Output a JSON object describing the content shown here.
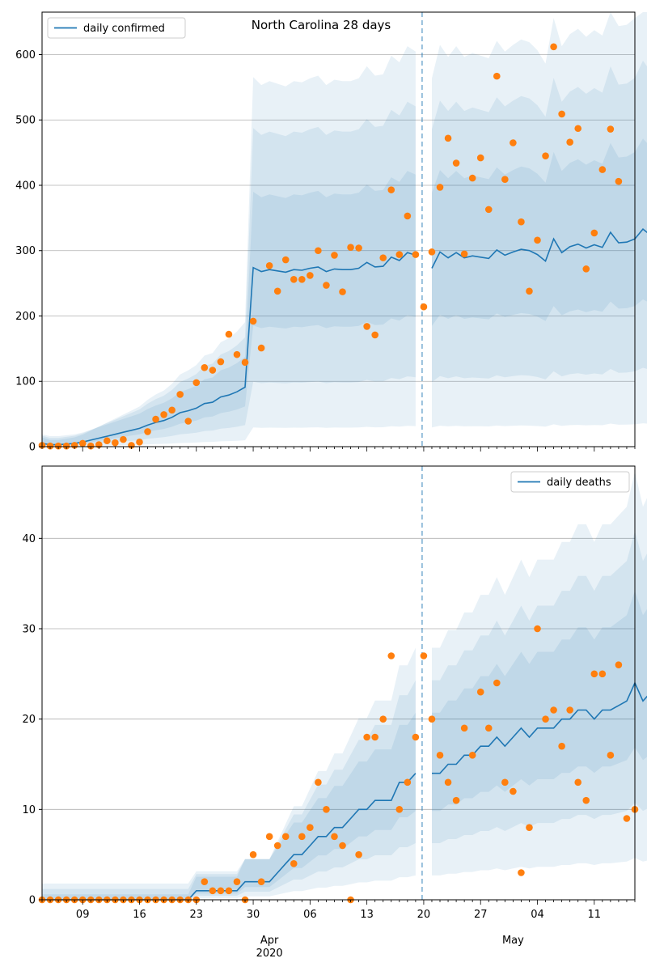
{
  "chart_data": [
    {
      "type": "line",
      "title": "North Carolina 28 days",
      "ylim": [
        0,
        665
      ],
      "yticks": [
        0,
        100,
        200,
        300,
        400,
        500,
        600
      ],
      "legend": "top-left",
      "grid": "horizontal",
      "day_range": [
        0,
        73
      ],
      "series": [
        {
          "name": "daily confirmed",
          "color": "#1f77b4",
          "values": [
            5,
            3,
            3,
            4,
            5,
            7,
            10,
            13,
            16,
            19,
            22,
            25,
            28,
            33,
            37,
            40,
            45,
            52,
            55,
            59,
            66,
            68,
            76,
            79,
            84,
            91,
            274,
            268,
            271,
            269,
            267,
            271,
            270,
            273,
            275,
            268,
            272,
            271,
            271,
            273,
            282,
            275,
            276,
            290,
            285,
            297,
            293,
            null,
            273,
            298,
            289,
            297,
            289,
            292,
            290,
            288,
            301,
            293,
            298,
            302,
            300,
            294,
            284,
            318,
            297,
            306,
            310,
            304,
            309,
            305,
            328,
            312,
            313,
            318,
            333,
            323
          ]
        }
      ],
      "observed": {
        "color": "#ff7f0e",
        "values": [
          2,
          1,
          1,
          1,
          2,
          5,
          1,
          3,
          9,
          6,
          11,
          2,
          7,
          23,
          42,
          49,
          56,
          80,
          39,
          98,
          121,
          117,
          130,
          172,
          141,
          129,
          192,
          151,
          277,
          238,
          286,
          256,
          256,
          262,
          300,
          247,
          293,
          237,
          305,
          304,
          184,
          171,
          289,
          393,
          294,
          353,
          294,
          214,
          298,
          397,
          472,
          434,
          295,
          411,
          442,
          363,
          567,
          409,
          465,
          344,
          238,
          316,
          445,
          612,
          509,
          466,
          487,
          272,
          327,
          424,
          486,
          406
        ]
      },
      "band_color": "#1f77b4"
    },
    {
      "type": "line",
      "ylim": [
        0,
        48
      ],
      "yticks": [
        0,
        10,
        20,
        30,
        40
      ],
      "legend": "top-right",
      "grid": "horizontal",
      "day_range": [
        0,
        73
      ],
      "series": [
        {
          "name": "daily deaths",
          "color": "#1f77b4",
          "values": [
            0,
            0,
            0,
            0,
            0,
            0,
            0,
            0,
            0,
            0,
            0,
            0,
            0,
            0,
            0,
            0,
            0,
            0,
            0,
            1,
            1,
            1,
            1,
            1,
            1,
            2,
            2,
            2,
            2,
            3,
            4,
            5,
            5,
            6,
            7,
            7,
            8,
            8,
            9,
            10,
            10,
            11,
            11,
            11,
            13,
            13,
            14,
            null,
            14,
            14,
            15,
            15,
            16,
            16,
            17,
            17,
            18,
            17,
            18,
            19,
            18,
            19,
            19,
            19,
            20,
            20,
            21,
            21,
            20,
            21,
            21,
            21.5,
            22,
            24,
            22,
            23
          ]
        }
      ],
      "observed": {
        "color": "#ff7f0e",
        "values": [
          0,
          0,
          0,
          0,
          0,
          0,
          0,
          0,
          0,
          0,
          0,
          0,
          0,
          0,
          0,
          0,
          0,
          0,
          0,
          0,
          2,
          1,
          1,
          1,
          2,
          0,
          5,
          2,
          7,
          6,
          7,
          4,
          7,
          8,
          13,
          10,
          7,
          6,
          0,
          5,
          18,
          18,
          20,
          27,
          10,
          13,
          18,
          27,
          20,
          16,
          13,
          11,
          19,
          16,
          23,
          19,
          24,
          13,
          12,
          3,
          8,
          30,
          20,
          21,
          17,
          21,
          13,
          11,
          25,
          25,
          16,
          26,
          9,
          10
        ]
      },
      "band_color": "#1f77b4"
    }
  ],
  "x_axis": {
    "tick_labels": [
      "09",
      "16",
      "23",
      "30",
      "06",
      "13",
      "20",
      "27",
      "04",
      "11"
    ],
    "tick_days": [
      5,
      12,
      19,
      26,
      33,
      40,
      47,
      54,
      61,
      68
    ],
    "month_labels": [
      {
        "day": 28,
        "label": "Apr",
        "year": "2020"
      },
      {
        "day": 58,
        "label": "May",
        "year": ""
      }
    ],
    "forecast_start_day": 46.8
  }
}
